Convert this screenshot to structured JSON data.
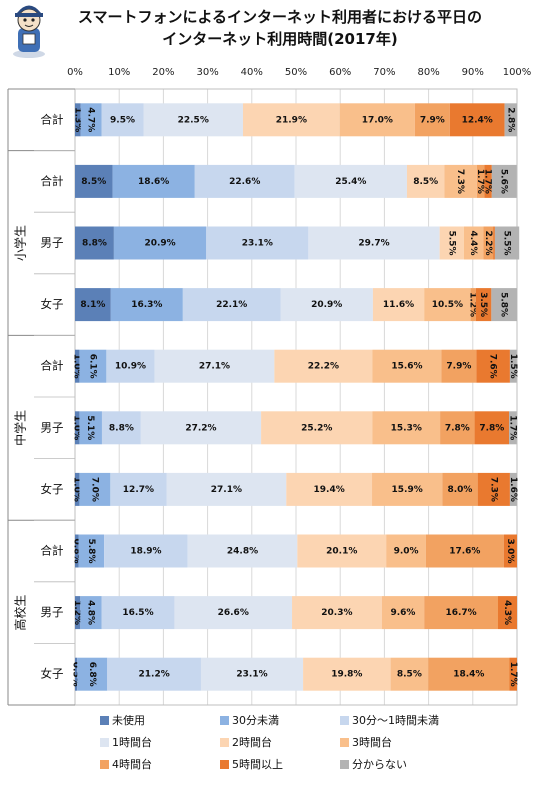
{
  "title_lines": [
    "スマートフォンによるインターネット利用者における平日の",
    "インターネット利用時間(2017年)"
  ],
  "legend": [
    {
      "name": "未使用",
      "color": "#5b80b7"
    },
    {
      "name": "30分未満",
      "color": "#8cb2e2"
    },
    {
      "name": "30分〜1時間未満",
      "color": "#c7d7ee"
    },
    {
      "name": "1時間台",
      "color": "#dde5f1"
    },
    {
      "name": "2時間台",
      "color": "#fcd5b2"
    },
    {
      "name": "3時間台",
      "color": "#f9bf8b"
    },
    {
      "name": "4時間台",
      "color": "#f2a261"
    },
    {
      "name": "5時間以上",
      "color": "#e9792f"
    },
    {
      "name": "分からない",
      "color": "#b3b3b3"
    }
  ],
  "chart_data": {
    "type": "bar",
    "orientation": "horizontal-stacked-100",
    "x_ticks": [
      "0%",
      "10%",
      "20%",
      "30%",
      "40%",
      "50%",
      "60%",
      "70%",
      "80%",
      "90%",
      "100%"
    ],
    "xlim": [
      0,
      100
    ],
    "groups": [
      {
        "name": "",
        "rows": [
          0
        ]
      },
      {
        "name": "小学生",
        "rows": [
          1,
          2,
          3
        ]
      },
      {
        "name": "中学生",
        "rows": [
          4,
          5,
          6
        ]
      },
      {
        "name": "高校生",
        "rows": [
          7,
          8,
          9
        ]
      }
    ],
    "categories": [
      "合計",
      "合計",
      "男子",
      "女子",
      "合計",
      "男子",
      "女子",
      "合計",
      "男子",
      "女子"
    ],
    "series": [
      {
        "name": "未使用",
        "values": [
          1.3,
          8.5,
          8.8,
          8.1,
          1.0,
          1.0,
          1.0,
          0.8,
          1.2,
          0.5
        ]
      },
      {
        "name": "30分未満",
        "values": [
          4.7,
          18.6,
          20.9,
          16.3,
          6.1,
          5.1,
          7.0,
          5.8,
          4.8,
          6.8
        ]
      },
      {
        "name": "30分〜1時間未満",
        "values": [
          9.5,
          22.6,
          23.1,
          22.1,
          10.9,
          8.8,
          12.7,
          18.9,
          16.5,
          21.2
        ]
      },
      {
        "name": "1時間台",
        "values": [
          22.5,
          25.4,
          29.7,
          20.9,
          27.1,
          27.2,
          27.1,
          24.8,
          26.6,
          23.1
        ]
      },
      {
        "name": "2時間台",
        "values": [
          21.9,
          8.5,
          5.5,
          11.6,
          22.2,
          25.2,
          19.4,
          20.1,
          20.3,
          19.8
        ]
      },
      {
        "name": "3時間台",
        "values": [
          17.0,
          7.3,
          4.4,
          10.5,
          15.6,
          15.3,
          15.9,
          9.0,
          9.6,
          8.5
        ]
      },
      {
        "name": "4時間台",
        "values": [
          7.9,
          1.7,
          2.2,
          1.2,
          7.9,
          7.8,
          8.0,
          17.6,
          16.7,
          18.4
        ]
      },
      {
        "name": "5時間以上",
        "values": [
          12.4,
          1.7,
          0.4,
          3.5,
          7.6,
          7.8,
          7.3,
          3.0,
          4.3,
          1.7
        ]
      },
      {
        "name": "分からない",
        "values": [
          2.8,
          5.6,
          5.5,
          5.8,
          1.5,
          1.7,
          1.6,
          0.0,
          0.0,
          0.0
        ]
      }
    ],
    "labels": [
      [
        "1.3%",
        "4.7%",
        "9.5%",
        "22.5%",
        "21.9%",
        "17.0%",
        "7.9%",
        "12.4%",
        "2.8%"
      ],
      [
        "8.5%",
        "18.6%",
        "22.6%",
        "25.4%",
        "8.5%",
        "7.3%",
        "1.7%",
        "1.7%",
        "5.6%"
      ],
      [
        "8.8%",
        "20.9%",
        "23.1%",
        "29.7%",
        "5.5%",
        "4.4%",
        "2.2%",
        "",
        "5.5%"
      ],
      [
        "8.1%",
        "16.3%",
        "22.1%",
        "20.9%",
        "11.6%",
        "10.5%",
        "1.2%",
        "3.5%",
        "5.8%"
      ],
      [
        "1.0%",
        "6.1%",
        "10.9%",
        "27.1%",
        "22.2%",
        "15.6%",
        "7.9%",
        "7.6%",
        "1.5%"
      ],
      [
        "1.0%",
        "5.1%",
        "8.8%",
        "27.2%",
        "25.2%",
        "15.3%",
        "7.8%",
        "7.8%",
        "1.7%"
      ],
      [
        "1.0%",
        "7.0%",
        "12.7%",
        "27.1%",
        "19.4%",
        "15.9%",
        "8.0%",
        "7.3%",
        "1.6%"
      ],
      [
        "0.8%",
        "5.8%",
        "18.9%",
        "24.8%",
        "20.1%",
        "9.0%",
        "17.6%",
        "3.0%",
        ""
      ],
      [
        "1.2%",
        "4.8%",
        "16.5%",
        "26.6%",
        "20.3%",
        "9.6%",
        "16.7%",
        "4.3%",
        ""
      ],
      [
        "0.5%",
        "6.8%",
        "21.2%",
        "23.1%",
        "19.8%",
        "8.5%",
        "18.4%",
        "1.7%",
        ""
      ]
    ]
  }
}
